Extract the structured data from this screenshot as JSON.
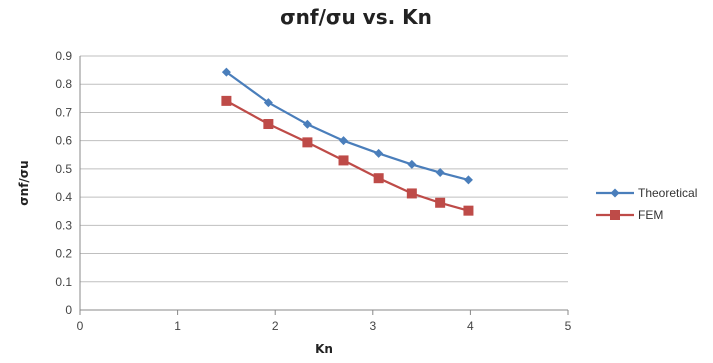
{
  "chart_data": {
    "type": "line",
    "title": "σnf/σu vs. Kn",
    "xlabel": "Kn",
    "ylabel": "σnf/σu",
    "xlim": [
      0,
      5
    ],
    "ylim": [
      0,
      0.9
    ],
    "xticks": [
      "0",
      "1",
      "2",
      "3",
      "4",
      "5"
    ],
    "yticks": [
      "0",
      "0.1",
      "0.2",
      "0.3",
      "0.4",
      "0.5",
      "0.6",
      "0.7",
      "0.8",
      "0.9"
    ],
    "grid": "horizontal",
    "legend_position": "right",
    "series": [
      {
        "name": "Theoretical",
        "color": "#4a7ebb",
        "marker": "diamond",
        "points": [
          [
            1.5,
            0.843
          ],
          [
            1.93,
            0.735
          ],
          [
            2.33,
            0.658
          ],
          [
            2.7,
            0.6
          ],
          [
            3.06,
            0.555
          ],
          [
            3.4,
            0.516
          ],
          [
            3.69,
            0.487
          ],
          [
            3.98,
            0.461
          ]
        ]
      },
      {
        "name": "FEM",
        "color": "#be4b48",
        "marker": "square",
        "points": [
          [
            1.5,
            0.741
          ],
          [
            1.93,
            0.659
          ],
          [
            2.33,
            0.594
          ],
          [
            2.7,
            0.53
          ],
          [
            3.06,
            0.467
          ],
          [
            3.4,
            0.413
          ],
          [
            3.69,
            0.38
          ],
          [
            3.98,
            0.352
          ]
        ]
      }
    ]
  }
}
